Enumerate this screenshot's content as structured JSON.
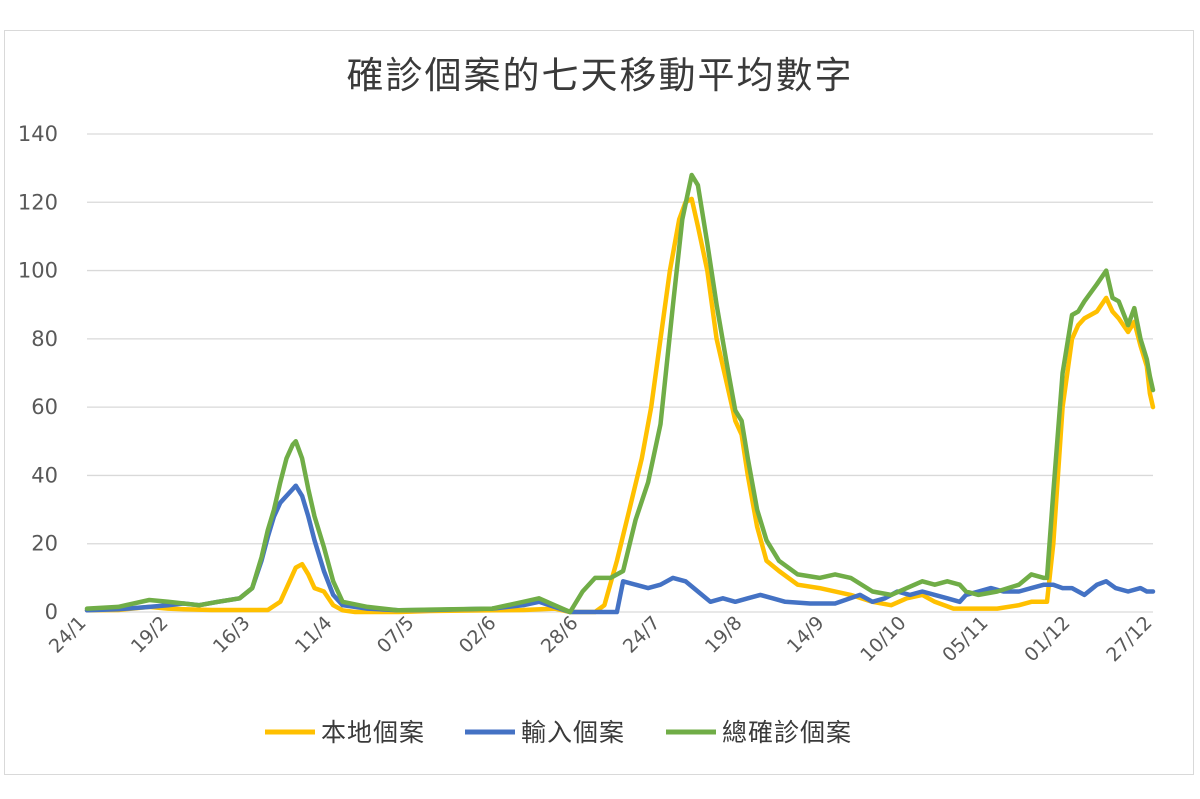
{
  "chart_data": {
    "type": "line",
    "title": "確診個案的七天移動平均數字",
    "xlabel": "",
    "ylabel": "",
    "ylim": [
      0,
      140
    ],
    "yticks": [
      0,
      20,
      40,
      60,
      80,
      100,
      120,
      140
    ],
    "xticks": [
      "24/1",
      "19/2",
      "16/3",
      "11/4",
      "07/5",
      "02/6",
      "28/6",
      "24/7",
      "19/8",
      "14/9",
      "10/10",
      "05/11",
      "01/12",
      "27/12"
    ],
    "grid": true,
    "legend_position": "bottom",
    "series": [
      {
        "name": "本地個案",
        "color": "#FFC000",
        "points": [
          [
            0,
            0.5
          ],
          [
            10,
            0.6
          ],
          [
            20,
            1.5
          ],
          [
            26,
            1.0
          ],
          [
            31,
            0.8
          ],
          [
            40,
            0.6
          ],
          [
            50,
            0.6
          ],
          [
            58,
            0.6
          ],
          [
            62,
            3
          ],
          [
            65,
            9
          ],
          [
            67,
            13
          ],
          [
            69,
            14
          ],
          [
            71,
            11
          ],
          [
            73,
            7
          ],
          [
            76,
            6
          ],
          [
            79,
            2
          ],
          [
            82,
            0.5
          ],
          [
            86,
            0
          ],
          [
            100,
            0
          ],
          [
            110,
            0.3
          ],
          [
            130,
            0.5
          ],
          [
            140,
            0.6
          ],
          [
            150,
            1
          ],
          [
            155,
            0
          ],
          [
            163,
            0
          ],
          [
            166,
            2
          ],
          [
            170,
            15
          ],
          [
            174,
            30
          ],
          [
            178,
            45
          ],
          [
            181,
            60
          ],
          [
            184,
            80
          ],
          [
            187,
            100
          ],
          [
            190,
            115
          ],
          [
            192,
            120
          ],
          [
            194,
            121
          ],
          [
            196,
            113
          ],
          [
            199,
            100
          ],
          [
            202,
            80
          ],
          [
            205,
            68
          ],
          [
            208,
            56
          ],
          [
            210,
            52
          ],
          [
            212,
            40
          ],
          [
            215,
            25
          ],
          [
            218,
            15
          ],
          [
            222,
            12
          ],
          [
            228,
            8
          ],
          [
            235,
            7
          ],
          [
            245,
            5
          ],
          [
            252,
            3
          ],
          [
            258,
            2
          ],
          [
            263,
            4
          ],
          [
            268,
            5
          ],
          [
            272,
            3
          ],
          [
            278,
            1
          ],
          [
            285,
            1
          ],
          [
            292,
            1
          ],
          [
            299,
            2
          ],
          [
            303,
            3
          ],
          [
            307,
            3
          ],
          [
            308,
            3
          ],
          [
            310,
            20
          ],
          [
            313,
            60
          ],
          [
            316,
            80
          ],
          [
            318,
            84
          ],
          [
            320,
            86
          ],
          [
            324,
            88
          ],
          [
            327,
            92
          ],
          [
            329,
            88
          ],
          [
            331,
            86
          ],
          [
            334,
            82
          ],
          [
            336,
            85
          ],
          [
            338,
            78
          ],
          [
            340,
            72
          ],
          [
            341,
            64
          ],
          [
            342,
            60
          ]
        ]
      },
      {
        "name": "輸入個案",
        "color": "#4472C4",
        "points": [
          [
            0,
            0.5
          ],
          [
            10,
            0.8
          ],
          [
            20,
            1.5
          ],
          [
            26,
            2
          ],
          [
            31,
            2.5
          ],
          [
            36,
            2
          ],
          [
            42,
            3
          ],
          [
            49,
            4
          ],
          [
            53,
            7
          ],
          [
            56,
            15
          ],
          [
            58,
            22
          ],
          [
            60,
            28
          ],
          [
            62,
            32
          ],
          [
            64,
            34
          ],
          [
            66,
            36
          ],
          [
            67,
            37
          ],
          [
            69,
            34
          ],
          [
            71,
            28
          ],
          [
            73,
            21
          ],
          [
            76,
            12
          ],
          [
            79,
            5
          ],
          [
            82,
            2
          ],
          [
            90,
            1
          ],
          [
            100,
            0.5
          ],
          [
            110,
            0.6
          ],
          [
            130,
            1
          ],
          [
            140,
            2
          ],
          [
            145,
            3
          ],
          [
            150,
            1.5
          ],
          [
            155,
            0
          ],
          [
            163,
            0
          ],
          [
            170,
            0
          ],
          [
            172,
            9
          ],
          [
            176,
            8
          ],
          [
            180,
            7
          ],
          [
            184,
            8
          ],
          [
            188,
            10
          ],
          [
            192,
            9
          ],
          [
            196,
            6
          ],
          [
            200,
            3
          ],
          [
            204,
            4
          ],
          [
            208,
            3
          ],
          [
            212,
            4
          ],
          [
            216,
            5
          ],
          [
            220,
            4
          ],
          [
            224,
            3
          ],
          [
            232,
            2.5
          ],
          [
            240,
            2.5
          ],
          [
            248,
            5
          ],
          [
            252,
            3
          ],
          [
            256,
            4
          ],
          [
            260,
            6
          ],
          [
            264,
            5
          ],
          [
            268,
            6
          ],
          [
            272,
            5
          ],
          [
            276,
            4
          ],
          [
            280,
            3
          ],
          [
            282,
            5
          ],
          [
            286,
            6
          ],
          [
            290,
            7
          ],
          [
            294,
            6
          ],
          [
            299,
            6
          ],
          [
            303,
            7
          ],
          [
            307,
            8
          ],
          [
            310,
            8
          ],
          [
            313,
            7
          ],
          [
            316,
            7
          ],
          [
            320,
            5
          ],
          [
            324,
            8
          ],
          [
            327,
            9
          ],
          [
            330,
            7
          ],
          [
            334,
            6
          ],
          [
            338,
            7
          ],
          [
            340,
            6
          ],
          [
            342,
            6
          ]
        ]
      },
      {
        "name": "總確診個案",
        "color": "#70AD47",
        "points": [
          [
            0,
            1
          ],
          [
            10,
            1.5
          ],
          [
            20,
            3.5
          ],
          [
            26,
            3
          ],
          [
            31,
            2.5
          ],
          [
            36,
            2
          ],
          [
            42,
            3
          ],
          [
            49,
            4
          ],
          [
            53,
            7
          ],
          [
            56,
            16
          ],
          [
            58,
            24
          ],
          [
            60,
            30
          ],
          [
            62,
            38
          ],
          [
            64,
            45
          ],
          [
            66,
            49
          ],
          [
            67,
            50
          ],
          [
            69,
            45
          ],
          [
            71,
            36
          ],
          [
            73,
            28
          ],
          [
            76,
            19
          ],
          [
            79,
            9
          ],
          [
            82,
            3
          ],
          [
            90,
            1.5
          ],
          [
            100,
            0.5
          ],
          [
            110,
            0.7
          ],
          [
            130,
            1
          ],
          [
            140,
            3
          ],
          [
            145,
            4
          ],
          [
            150,
            2
          ],
          [
            155,
            0
          ],
          [
            159,
            6
          ],
          [
            163,
            10
          ],
          [
            168,
            10
          ],
          [
            172,
            12
          ],
          [
            176,
            27
          ],
          [
            180,
            38
          ],
          [
            184,
            55
          ],
          [
            188,
            90
          ],
          [
            191,
            115
          ],
          [
            194,
            128
          ],
          [
            196,
            125
          ],
          [
            199,
            108
          ],
          [
            202,
            90
          ],
          [
            205,
            74
          ],
          [
            208,
            59
          ],
          [
            210,
            56
          ],
          [
            212,
            45
          ],
          [
            215,
            30
          ],
          [
            218,
            21
          ],
          [
            222,
            15
          ],
          [
            228,
            11
          ],
          [
            235,
            10
          ],
          [
            240,
            11
          ],
          [
            245,
            10
          ],
          [
            252,
            6
          ],
          [
            258,
            5
          ],
          [
            263,
            7
          ],
          [
            268,
            9
          ],
          [
            272,
            8
          ],
          [
            276,
            9
          ],
          [
            280,
            8
          ],
          [
            282,
            6
          ],
          [
            286,
            5
          ],
          [
            292,
            6
          ],
          [
            299,
            8
          ],
          [
            303,
            11
          ],
          [
            307,
            10
          ],
          [
            308,
            10
          ],
          [
            310,
            35
          ],
          [
            313,
            70
          ],
          [
            316,
            87
          ],
          [
            318,
            88
          ],
          [
            320,
            91
          ],
          [
            324,
            96
          ],
          [
            327,
            100
          ],
          [
            329,
            92
          ],
          [
            331,
            91
          ],
          [
            334,
            84
          ],
          [
            336,
            89
          ],
          [
            338,
            80
          ],
          [
            340,
            74
          ],
          [
            341,
            69
          ],
          [
            342,
            65
          ]
        ]
      }
    ]
  }
}
